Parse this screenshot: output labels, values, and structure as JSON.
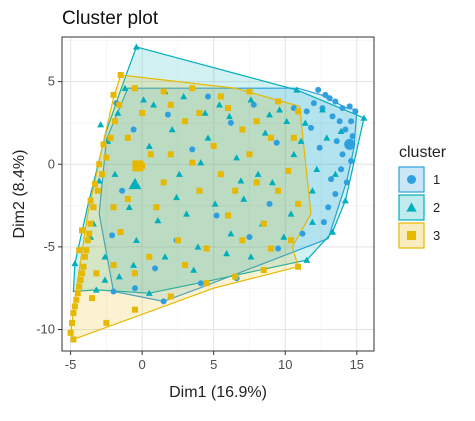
{
  "chart_data": {
    "type": "scatter",
    "title": "Cluster plot",
    "xlabel": "Dim1 (16.9%)",
    "ylabel": "Dim2 (8.4%)",
    "xlim": [
      -5.6,
      16.2
    ],
    "ylim": [
      -11.3,
      7.7
    ],
    "x_ticks": [
      -5,
      0,
      5,
      10,
      15
    ],
    "y_ticks": [
      -10,
      -5,
      0,
      5
    ],
    "grid": true,
    "legend_title": "cluster",
    "legend_position": "right",
    "series": [
      {
        "name": "1",
        "marker": "circle",
        "color": "#2e9fdf",
        "center": [
          14.5,
          1.2
        ],
        "hull": [
          [
            -1.0,
            4.6
          ],
          [
            10.9,
            4.6
          ],
          [
            12.5,
            4.2
          ],
          [
            14.3,
            3.4
          ],
          [
            15.0,
            3.3
          ],
          [
            14.8,
            1.0
          ],
          [
            14.3,
            -1.0
          ],
          [
            13.0,
            -4.5
          ],
          [
            4.0,
            -7.5
          ],
          [
            1.5,
            -8.3
          ],
          [
            -2.0,
            -7.7
          ],
          [
            -3.0,
            -3.0
          ],
          [
            -2.5,
            1.5
          ]
        ],
        "points": [
          [
            12.3,
            4.5
          ],
          [
            12.8,
            4.2
          ],
          [
            13.1,
            4.0
          ],
          [
            13.5,
            3.8
          ],
          [
            14.0,
            3.4
          ],
          [
            14.5,
            3.5
          ],
          [
            14.9,
            3.2
          ],
          [
            14.6,
            2.6
          ],
          [
            14.2,
            2.1
          ],
          [
            13.8,
            2.6
          ],
          [
            14.7,
            1.7
          ],
          [
            14.4,
            1.2
          ],
          [
            14.0,
            0.6
          ],
          [
            13.6,
            1.4
          ],
          [
            13.3,
            2.9
          ],
          [
            12.6,
            3.4
          ],
          [
            12.0,
            3.7
          ],
          [
            11.5,
            3.2
          ],
          [
            13.9,
            -0.3
          ],
          [
            14.3,
            -1.1
          ],
          [
            13.5,
            -1.8
          ],
          [
            13.0,
            -2.6
          ],
          [
            14.6,
            0.2
          ],
          [
            12.4,
            1.0
          ],
          [
            11.8,
            2.2
          ],
          [
            13.2,
            -0.9
          ],
          [
            12.7,
            -3.5
          ],
          [
            11.2,
            -4.2
          ],
          [
            9.5,
            -5.1
          ],
          [
            6.6,
            -6.9
          ],
          [
            4.1,
            -7.2
          ],
          [
            1.5,
            -8.3
          ],
          [
            -0.5,
            -7.5
          ],
          [
            -2.0,
            -7.7
          ],
          [
            7.5,
            -4.4
          ],
          [
            8.9,
            -2.4
          ],
          [
            5.2,
            -3.1
          ],
          [
            3.5,
            0.9
          ],
          [
            1.8,
            3.0
          ],
          [
            -0.6,
            2.1
          ],
          [
            -1.4,
            -1.6
          ],
          [
            2.4,
            -4.6
          ],
          [
            6.2,
            2.5
          ],
          [
            9.4,
            1.3
          ],
          [
            10.6,
            3.4
          ],
          [
            7.8,
            3.6
          ],
          [
            4.6,
            4.1
          ],
          [
            -1.8,
            3.7
          ],
          [
            -2.1,
            -4.3
          ],
          [
            0.9,
            -6.3
          ]
        ]
      },
      {
        "name": "2",
        "marker": "triangle",
        "color": "#00afbb",
        "center": [
          -0.5,
          -1.2
        ],
        "hull": [
          [
            -0.4,
            7.1
          ],
          [
            10.8,
            4.5
          ],
          [
            15.5,
            2.8
          ],
          [
            14.2,
            -2.2
          ],
          [
            13.3,
            -4.1
          ],
          [
            11.5,
            -5.8
          ],
          [
            5.0,
            -7.0
          ],
          [
            0.5,
            -7.8
          ],
          [
            -3.2,
            -7.6
          ],
          [
            -4.8,
            -7.7
          ],
          [
            -4.7,
            -6.0
          ],
          [
            -3.8,
            -2.5
          ],
          [
            -2.5,
            2.0
          ],
          [
            -1.5,
            4.5
          ]
        ],
        "points": [
          [
            -0.4,
            7.1
          ],
          [
            10.8,
            4.5
          ],
          [
            15.5,
            2.8
          ],
          [
            14.2,
            -2.2
          ],
          [
            13.3,
            -4.1
          ],
          [
            11.5,
            -5.8
          ],
          [
            0.5,
            -7.8
          ],
          [
            -3.2,
            -7.6
          ],
          [
            -4.7,
            -6.0
          ],
          [
            -1.2,
            4.6
          ],
          [
            0.8,
            3.6
          ],
          [
            2.9,
            4.1
          ],
          [
            5.4,
            3.6
          ],
          [
            7.6,
            3.9
          ],
          [
            9.6,
            3.3
          ],
          [
            11.4,
            2.5
          ],
          [
            12.9,
            1.6
          ],
          [
            13.5,
            -0.6
          ],
          [
            11.9,
            -1.6
          ],
          [
            10.4,
            -3.0
          ],
          [
            8.4,
            -3.6
          ],
          [
            6.2,
            -4.2
          ],
          [
            3.9,
            -5.0
          ],
          [
            1.6,
            -5.6
          ],
          [
            -0.6,
            -6.1
          ],
          [
            -2.6,
            -5.6
          ],
          [
            -3.4,
            -3.6
          ],
          [
            -3.0,
            -1.0
          ],
          [
            -2.4,
            1.4
          ],
          [
            -1.7,
            3.1
          ],
          [
            0.5,
            1.1
          ],
          [
            2.6,
            -0.6
          ],
          [
            4.6,
            1.6
          ],
          [
            6.6,
            0.4
          ],
          [
            8.6,
            1.9
          ],
          [
            10.6,
            0.6
          ],
          [
            12.2,
            -0.3
          ],
          [
            9.1,
            -1.1
          ],
          [
            7.1,
            -2.1
          ],
          [
            5.1,
            -2.4
          ],
          [
            3.1,
            -3.0
          ],
          [
            1.1,
            -3.4
          ],
          [
            -0.9,
            -2.6
          ],
          [
            -1.9,
            -0.6
          ],
          [
            0.1,
            3.9
          ],
          [
            2.1,
            2.1
          ],
          [
            4.1,
            0.1
          ],
          [
            6.1,
            2.9
          ],
          [
            8.1,
            -0.6
          ],
          [
            10.1,
            2.6
          ],
          [
            -2.6,
            -7.0
          ],
          [
            -1.6,
            -6.8
          ],
          [
            3.6,
            -6.4
          ],
          [
            7.6,
            -5.6
          ],
          [
            12.6,
            3.3
          ],
          [
            13.9,
            2.0
          ],
          [
            -3.6,
            -4.4
          ],
          [
            -2.9,
            2.4
          ],
          [
            1.6,
            4.4
          ],
          [
            5.9,
            -5.4
          ],
          [
            9.9,
            -4.4
          ],
          [
            11.9,
            -3.5
          ],
          [
            4.4,
            3.1
          ],
          [
            6.9,
            -1.0
          ],
          [
            2.4,
            -2.0
          ],
          [
            -0.4,
            -4.6
          ],
          [
            8.9,
            3.0
          ],
          [
            11.1,
            1.4
          ]
        ]
      },
      {
        "name": "3",
        "marker": "square",
        "color": "#e7b800",
        "center": [
          -0.3,
          -0.1
        ],
        "hull": [
          [
            -1.5,
            5.4
          ],
          [
            6.5,
            4.6
          ],
          [
            11.0,
            3.5
          ],
          [
            11.8,
            -3.0
          ],
          [
            10.5,
            -5.0
          ],
          [
            10.9,
            -6.2
          ],
          [
            5.0,
            -7.5
          ],
          [
            -4.8,
            -10.6
          ],
          [
            -5.0,
            -10.2
          ],
          [
            -4.8,
            -9.0
          ],
          [
            -4.5,
            -7.0
          ],
          [
            -3.8,
            -3.0
          ],
          [
            -2.8,
            1.0
          ],
          [
            -2.0,
            4.0
          ]
        ],
        "points": [
          [
            -1.5,
            5.4
          ],
          [
            -0.5,
            4.6
          ],
          [
            1.5,
            4.4
          ],
          [
            3.5,
            4.6
          ],
          [
            5.5,
            4.1
          ],
          [
            7.5,
            4.4
          ],
          [
            9.5,
            3.8
          ],
          [
            10.9,
            3.2
          ],
          [
            10.6,
            1.6
          ],
          [
            10.2,
            -0.4
          ],
          [
            10.9,
            -2.4
          ],
          [
            10.4,
            -4.6
          ],
          [
            10.9,
            -6.2
          ],
          [
            8.5,
            -6.4
          ],
          [
            6.5,
            -6.8
          ],
          [
            4.5,
            -7.2
          ],
          [
            2.0,
            -8.0
          ],
          [
            -0.5,
            -8.8
          ],
          [
            -2.5,
            -9.6
          ],
          [
            -4.8,
            -10.6
          ],
          [
            -5.0,
            -10.2
          ],
          [
            -4.8,
            -9.0
          ],
          [
            -4.6,
            -8.2
          ],
          [
            -4.4,
            -7.4
          ],
          [
            -4.2,
            -6.6
          ],
          [
            -4.0,
            -5.6
          ],
          [
            -3.8,
            -4.6
          ],
          [
            -3.6,
            -3.6
          ],
          [
            -3.4,
            -2.6
          ],
          [
            -3.1,
            -1.6
          ],
          [
            -2.8,
            -0.6
          ],
          [
            -2.5,
            0.4
          ],
          [
            -2.2,
            1.6
          ],
          [
            -1.9,
            2.6
          ],
          [
            -1.6,
            3.6
          ],
          [
            -4.9,
            -9.6
          ],
          [
            -4.7,
            -8.6
          ],
          [
            -4.5,
            -7.8
          ],
          [
            -4.3,
            -7.0
          ],
          [
            -4.1,
            -6.2
          ],
          [
            -3.9,
            -5.2
          ],
          [
            -3.7,
            -4.2
          ],
          [
            -4.4,
            -5.2
          ],
          [
            -4.2,
            -4.0
          ],
          [
            -3.6,
            -2.2
          ],
          [
            -3.3,
            -1.2
          ],
          [
            -3.0,
            0.0
          ],
          [
            -2.7,
            1.2
          ],
          [
            -2.0,
            4.2
          ],
          [
            -1.0,
            1.6
          ],
          [
            0.0,
            -0.1
          ],
          [
            1.0,
            -2.6
          ],
          [
            2.0,
            0.6
          ],
          [
            3.0,
            2.6
          ],
          [
            4.0,
            -1.6
          ],
          [
            5.0,
            1.1
          ],
          [
            6.0,
            -3.1
          ],
          [
            7.0,
            2.1
          ],
          [
            8.0,
            -1.1
          ],
          [
            9.0,
            1.6
          ],
          [
            -1.5,
            -4.1
          ],
          [
            0.5,
            -5.6
          ],
          [
            2.5,
            -4.6
          ],
          [
            4.5,
            -5.1
          ],
          [
            6.5,
            -1.6
          ],
          [
            8.5,
            -3.6
          ],
          [
            -2.0,
            -6.1
          ],
          [
            0.0,
            3.1
          ],
          [
            2.0,
            3.6
          ],
          [
            4.0,
            3.1
          ],
          [
            6.0,
            3.4
          ],
          [
            8.0,
            2.6
          ],
          [
            -1.0,
            -2.1
          ],
          [
            1.5,
            -1.1
          ],
          [
            3.5,
            0.1
          ],
          [
            5.5,
            -0.6
          ],
          [
            7.5,
            0.6
          ],
          [
            9.5,
            -1.6
          ],
          [
            -0.5,
            -6.6
          ],
          [
            3.0,
            -6.1
          ],
          [
            7.0,
            -4.6
          ],
          [
            9.0,
            -5.1
          ],
          [
            -3.2,
            -6.6
          ],
          [
            -3.5,
            -8.1
          ],
          [
            -2.0,
            -2.6
          ],
          [
            0.6,
            0.6
          ]
        ]
      }
    ]
  }
}
